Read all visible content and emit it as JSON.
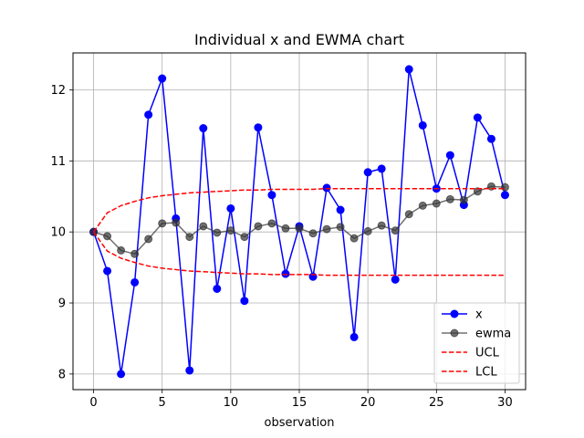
{
  "chart_data": {
    "type": "line",
    "title": "Individual x and EWMA chart",
    "xlabel": "observation",
    "ylabel": "",
    "xlim": [
      -1.5,
      31.5
    ],
    "ylim": [
      7.78,
      12.52
    ],
    "xticks": [
      0,
      5,
      10,
      15,
      20,
      25,
      30
    ],
    "yticks": [
      8,
      9,
      10,
      11,
      12
    ],
    "grid": true,
    "legend_position": "lower-right",
    "x": [
      0,
      1,
      2,
      3,
      4,
      5,
      6,
      7,
      8,
      9,
      10,
      11,
      12,
      13,
      14,
      15,
      16,
      17,
      18,
      19,
      20,
      21,
      22,
      23,
      24,
      25,
      26,
      27,
      28,
      29,
      30
    ],
    "series": [
      {
        "name": "x",
        "color": "#0000ff",
        "style": "solid",
        "marker": "circle",
        "values": [
          10.0,
          9.45,
          8.0,
          9.29,
          11.65,
          12.16,
          10.19,
          8.05,
          11.46,
          9.2,
          10.33,
          9.03,
          11.47,
          10.52,
          9.41,
          10.08,
          9.37,
          10.62,
          10.31,
          8.52,
          10.84,
          10.89,
          9.33,
          12.29,
          11.5,
          10.61,
          11.08,
          10.38,
          11.61,
          11.31,
          10.52
        ]
      },
      {
        "name": "ewma",
        "color": "#333333",
        "style": "solid",
        "marker": "circle",
        "values": [
          10.0,
          9.94,
          9.74,
          9.69,
          9.9,
          10.12,
          10.13,
          9.93,
          10.08,
          9.99,
          10.02,
          9.93,
          10.08,
          10.12,
          10.05,
          10.05,
          9.98,
          10.04,
          10.07,
          9.91,
          10.01,
          10.09,
          10.02,
          10.25,
          10.37,
          10.4,
          10.46,
          10.45,
          10.57,
          10.64,
          10.63
        ]
      },
      {
        "name": "UCL",
        "color": "#ff0000",
        "style": "dashed",
        "marker": "none",
        "values": [
          10.0,
          10.27,
          10.37,
          10.43,
          10.48,
          10.51,
          10.53,
          10.55,
          10.56,
          10.57,
          10.58,
          10.59,
          10.59,
          10.6,
          10.6,
          10.6,
          10.6,
          10.61,
          10.61,
          10.61,
          10.61,
          10.61,
          10.61,
          10.61,
          10.61,
          10.61,
          10.61,
          10.61,
          10.61,
          10.61,
          10.61
        ]
      },
      {
        "name": "LCL",
        "color": "#ff0000",
        "style": "dashed",
        "marker": "none",
        "values": [
          10.0,
          9.73,
          9.63,
          9.57,
          9.52,
          9.49,
          9.47,
          9.45,
          9.44,
          9.43,
          9.42,
          9.41,
          9.41,
          9.4,
          9.4,
          9.4,
          9.4,
          9.39,
          9.39,
          9.39,
          9.39,
          9.39,
          9.39,
          9.39,
          9.39,
          9.39,
          9.39,
          9.39,
          9.39,
          9.39,
          9.39
        ]
      }
    ]
  }
}
